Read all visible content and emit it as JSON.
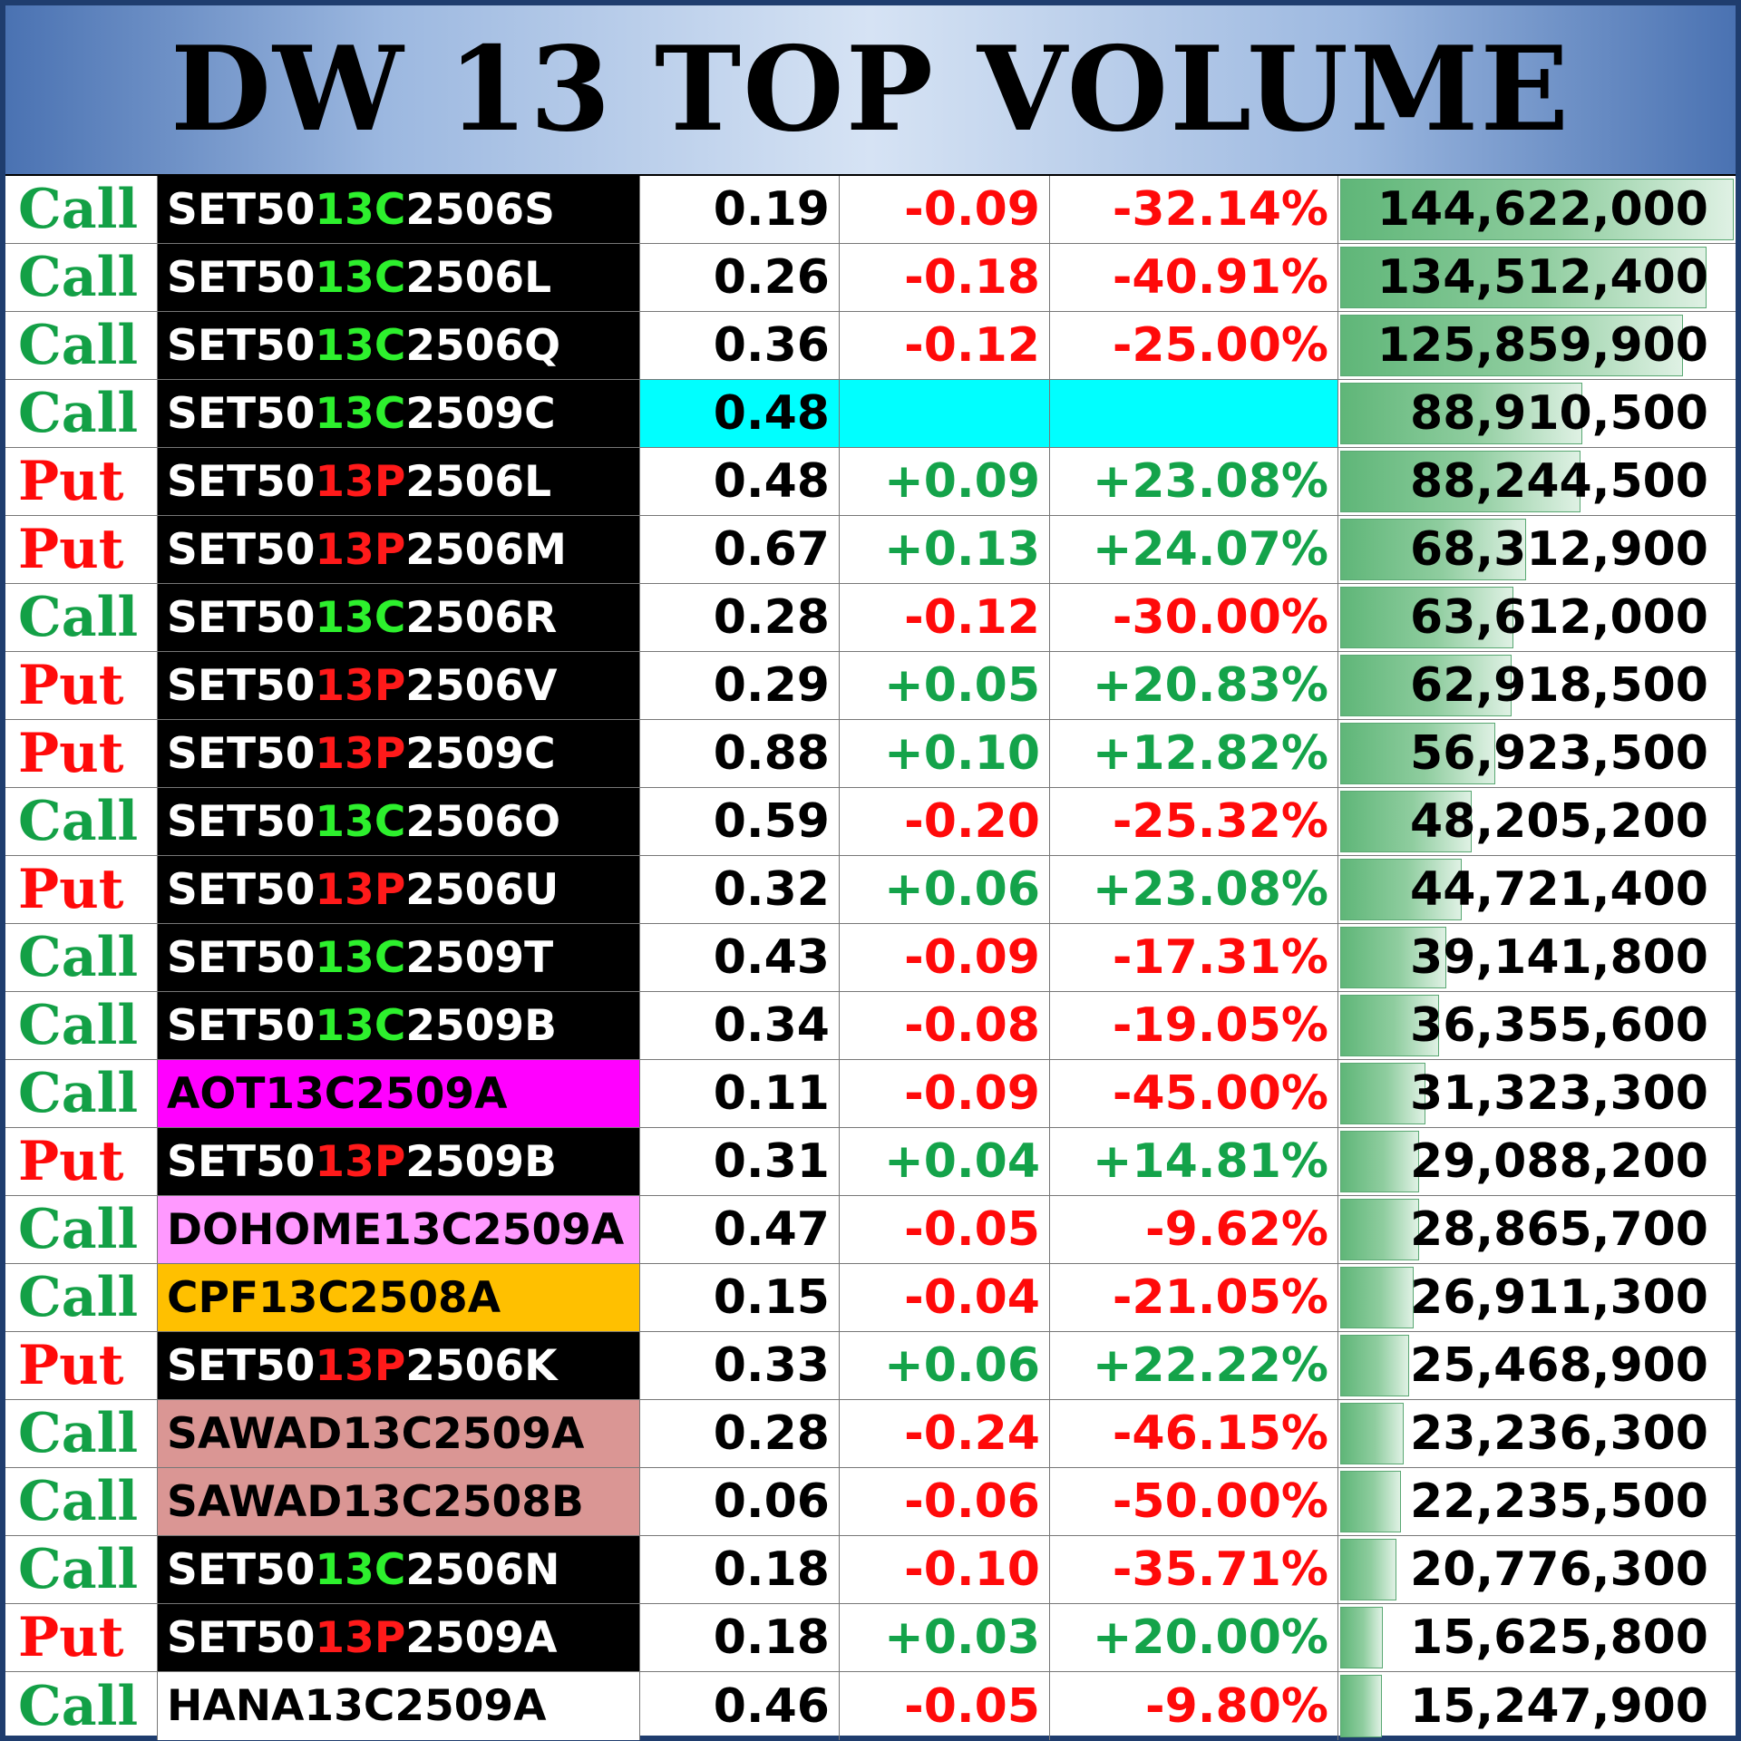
{
  "title": "DW 13 TOP VOLUME",
  "colors": {
    "call": "#13a046",
    "put": "#ff0a0a",
    "up": "#14a34a",
    "down": "#ff0a0a",
    "code_call": "#2df02d",
    "code_put": "#ff1a1a",
    "name_black_bg": "#000000",
    "highlight_cyan": "#00ffff"
  },
  "rows": [
    {
      "type": "Call",
      "name_prefix": "SET50",
      "name_code": "13C",
      "name_suffix": "2506S",
      "name_style": "dark",
      "last": "0.19",
      "change": "-0.09",
      "percent": "-32.14%",
      "volume": "144,622,000",
      "volume_value": 144622000
    },
    {
      "type": "Call",
      "name_prefix": "SET50",
      "name_code": "13C",
      "name_suffix": "2506L",
      "name_style": "dark",
      "last": "0.26",
      "change": "-0.18",
      "percent": "-40.91%",
      "volume": "134,512,400",
      "volume_value": 134512400
    },
    {
      "type": "Call",
      "name_prefix": "SET50",
      "name_code": "13C",
      "name_suffix": "2506Q",
      "name_style": "dark",
      "last": "0.36",
      "change": "-0.12",
      "percent": "-25.00%",
      "volume": "125,859,900",
      "volume_value": 125859900
    },
    {
      "type": "Call",
      "name_prefix": "SET50",
      "name_code": "13C",
      "name_suffix": "2509C",
      "name_style": "dark",
      "last": "0.48",
      "change": "",
      "percent": "",
      "volume": "88,910,500",
      "volume_value": 88910500,
      "highlight": true
    },
    {
      "type": "Put",
      "name_prefix": "SET50",
      "name_code": "13P",
      "name_suffix": "2506L",
      "name_style": "dark",
      "last": "0.48",
      "change": "+0.09",
      "percent": "+23.08%",
      "volume": "88,244,500",
      "volume_value": 88244500
    },
    {
      "type": "Put",
      "name_prefix": "SET50",
      "name_code": "13P",
      "name_suffix": "2506M",
      "name_style": "dark",
      "last": "0.67",
      "change": "+0.13",
      "percent": "+24.07%",
      "volume": "68,312,900",
      "volume_value": 68312900
    },
    {
      "type": "Call",
      "name_prefix": "SET50",
      "name_code": "13C",
      "name_suffix": "2506R",
      "name_style": "dark",
      "last": "0.28",
      "change": "-0.12",
      "percent": "-30.00%",
      "volume": "63,612,000",
      "volume_value": 63612000
    },
    {
      "type": "Put",
      "name_prefix": "SET50",
      "name_code": "13P",
      "name_suffix": "2506V",
      "name_style": "dark",
      "last": "0.29",
      "change": "+0.05",
      "percent": "+20.83%",
      "volume": "62,918,500",
      "volume_value": 62918500
    },
    {
      "type": "Put",
      "name_prefix": "SET50",
      "name_code": "13P",
      "name_suffix": "2509C",
      "name_style": "dark",
      "last": "0.88",
      "change": "+0.10",
      "percent": "+12.82%",
      "volume": "56,923,500",
      "volume_value": 56923500
    },
    {
      "type": "Call",
      "name_prefix": "SET50",
      "name_code": "13C",
      "name_suffix": "2506O",
      "name_style": "dark",
      "last": "0.59",
      "change": "-0.20",
      "percent": "-25.32%",
      "volume": "48,205,200",
      "volume_value": 48205200
    },
    {
      "type": "Put",
      "name_prefix": "SET50",
      "name_code": "13P",
      "name_suffix": "2506U",
      "name_style": "dark",
      "last": "0.32",
      "change": "+0.06",
      "percent": "+23.08%",
      "volume": "44,721,400",
      "volume_value": 44721400
    },
    {
      "type": "Call",
      "name_prefix": "SET50",
      "name_code": "13C",
      "name_suffix": "2509T",
      "name_style": "dark",
      "last": "0.43",
      "change": "-0.09",
      "percent": "-17.31%",
      "volume": "39,141,800",
      "volume_value": 39141800
    },
    {
      "type": "Call",
      "name_prefix": "SET50",
      "name_code": "13C",
      "name_suffix": "2509B",
      "name_style": "dark",
      "last": "0.34",
      "change": "-0.08",
      "percent": "-19.05%",
      "volume": "36,355,600",
      "volume_value": 36355600
    },
    {
      "type": "Call",
      "name_prefix": "",
      "name_code": "",
      "name_suffix": "AOT13C2509A",
      "name_style": "light",
      "name_bg": "#ff00ff",
      "last": "0.11",
      "change": "-0.09",
      "percent": "-45.00%",
      "volume": "31,323,300",
      "volume_value": 31323300
    },
    {
      "type": "Put",
      "name_prefix": "SET50",
      "name_code": "13P",
      "name_suffix": "2509B",
      "name_style": "dark",
      "last": "0.31",
      "change": "+0.04",
      "percent": "+14.81%",
      "volume": "29,088,200",
      "volume_value": 29088200
    },
    {
      "type": "Call",
      "name_prefix": "",
      "name_code": "",
      "name_suffix": "DOHOME13C2509A",
      "name_style": "light",
      "name_bg": "#ff99ff",
      "last": "0.47",
      "change": "-0.05",
      "percent": "-9.62%",
      "volume": "28,865,700",
      "volume_value": 28865700
    },
    {
      "type": "Call",
      "name_prefix": "",
      "name_code": "",
      "name_suffix": "CPF13C2508A",
      "name_style": "light",
      "name_bg": "#ffc000",
      "last": "0.15",
      "change": "-0.04",
      "percent": "-21.05%",
      "volume": "26,911,300",
      "volume_value": 26911300
    },
    {
      "type": "Put",
      "name_prefix": "SET50",
      "name_code": "13P",
      "name_suffix": "2506K",
      "name_style": "dark",
      "last": "0.33",
      "change": "+0.06",
      "percent": "+22.22%",
      "volume": "25,468,900",
      "volume_value": 25468900
    },
    {
      "type": "Call",
      "name_prefix": "",
      "name_code": "",
      "name_suffix": "SAWAD13C2509A",
      "name_style": "light",
      "name_bg": "#da9694",
      "last": "0.28",
      "change": "-0.24",
      "percent": "-46.15%",
      "volume": "23,236,300",
      "volume_value": 23236300
    },
    {
      "type": "Call",
      "name_prefix": "",
      "name_code": "",
      "name_suffix": "SAWAD13C2508B",
      "name_style": "light",
      "name_bg": "#da9694",
      "last": "0.06",
      "change": "-0.06",
      "percent": "-50.00%",
      "volume": "22,235,500",
      "volume_value": 22235500
    },
    {
      "type": "Call",
      "name_prefix": "SET50",
      "name_code": "13C",
      "name_suffix": "2506N",
      "name_style": "dark",
      "last": "0.18",
      "change": "-0.10",
      "percent": "-35.71%",
      "volume": "20,776,300",
      "volume_value": 20776300
    },
    {
      "type": "Put",
      "name_prefix": "SET50",
      "name_code": "13P",
      "name_suffix": "2509A",
      "name_style": "dark",
      "last": "0.18",
      "change": "+0.03",
      "percent": "+20.00%",
      "volume": "15,625,800",
      "volume_value": 15625800
    },
    {
      "type": "Call",
      "name_prefix": "",
      "name_code": "",
      "name_suffix": "HANA13C2509A",
      "name_style": "light",
      "name_bg": "#ffffff",
      "last": "0.46",
      "change": "-0.05",
      "percent": "-9.80%",
      "volume": "15,247,900",
      "volume_value": 15247900
    }
  ]
}
